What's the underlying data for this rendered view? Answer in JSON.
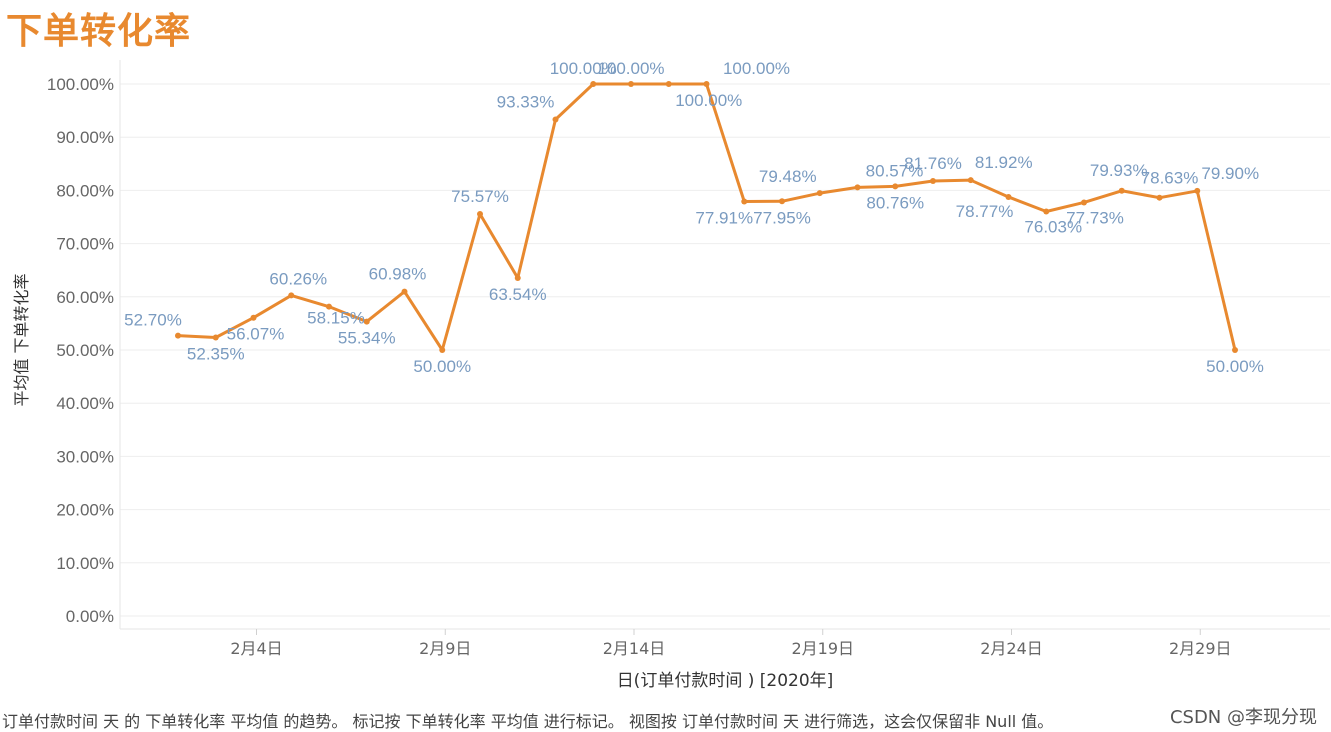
{
  "page_title": "下单转化率",
  "chart_data": {
    "type": "line",
    "title": "下单转化率",
    "xlabel": "日(订单付款时间 ) [2020年]",
    "ylabel": "平均值 下单转化率",
    "x": [
      "2月2日",
      "2月3日",
      "2月4日",
      "2月5日",
      "2月6日",
      "2月7日",
      "2月8日",
      "2月9日",
      "2月10日",
      "2月11日",
      "2月12日",
      "2月13日",
      "2月14日",
      "2月15日",
      "2月16日",
      "2月17日",
      "2月18日",
      "2月19日",
      "2月20日",
      "2月21日",
      "2月22日",
      "2月23日",
      "2月24日",
      "2月25日",
      "2月26日",
      "2月27日",
      "2月28日",
      "2月29日",
      "3月1日"
    ],
    "x_tick_labels": [
      {
        "index": 2,
        "label": "2月4日"
      },
      {
        "index": 7,
        "label": "2月9日"
      },
      {
        "index": 12,
        "label": "2月14日"
      },
      {
        "index": 17,
        "label": "2月19日"
      },
      {
        "index": 22,
        "label": "2月24日"
      },
      {
        "index": 27,
        "label": "2月29日"
      }
    ],
    "series": [
      {
        "name": "平均值 下单转化率",
        "values": [
          52.7,
          52.35,
          56.07,
          60.26,
          58.15,
          55.34,
          60.98,
          50.0,
          75.57,
          63.54,
          93.33,
          100.0,
          100.0,
          100.0,
          100.0,
          77.91,
          77.95,
          79.48,
          80.57,
          80.76,
          81.76,
          81.92,
          78.77,
          76.03,
          77.73,
          79.93,
          78.63,
          79.9,
          50.0
        ]
      }
    ],
    "point_labels": [
      "52.70%",
      "52.35%",
      "56.07%",
      "60.26%",
      "58.15%",
      "55.34%",
      "60.98%",
      "50.00%",
      "75.57%",
      "63.54%",
      "93.33%",
      "100.00%",
      "100.00%",
      "100.00%",
      "100.00%",
      "77.91%",
      "77.95%",
      "79.48%",
      "80.57%",
      "80.76%",
      "81.76%",
      "81.92%",
      "78.77%",
      "76.03%",
      "77.73%",
      "79.93%",
      "78.63%",
      "79.90%",
      "50.00%"
    ],
    "y_ticks": [
      0,
      10,
      20,
      30,
      40,
      50,
      60,
      70,
      80,
      90,
      100
    ],
    "y_tick_labels": [
      "0.00%",
      "10.00%",
      "20.00%",
      "30.00%",
      "40.00%",
      "50.00%",
      "60.00%",
      "70.00%",
      "80.00%",
      "90.00%",
      "100.00%"
    ],
    "ylim": [
      0,
      100
    ],
    "grid": true,
    "colors": {
      "line": "#e8892f",
      "label": "#7a9bc0",
      "grid": "#eeeeee",
      "axis_text": "#666666"
    }
  },
  "caption": "订单付款时间 天 的 下单转化率 平均值 的趋势。 标记按 下单转化率 平均值 进行标记。 视图按 订单付款时间 天 进行筛选，这会仅保留非 Null 值。",
  "watermark": "CSDN @李现分现"
}
